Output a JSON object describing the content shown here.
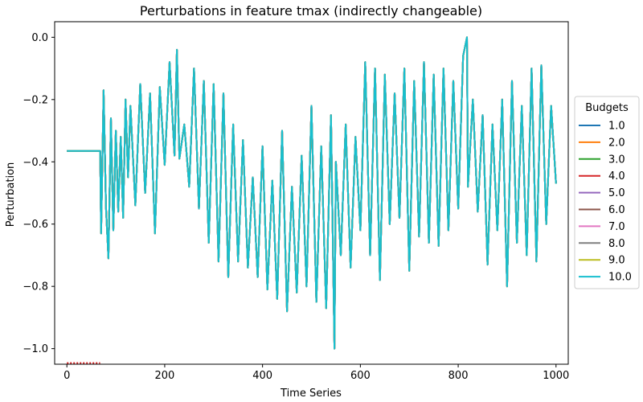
{
  "chart_data": {
    "type": "line",
    "title": "Perturbations in feature tmax (indirectly changeable)",
    "xlabel": "Time Series",
    "ylabel": "Perturbation",
    "xlim": [
      -25,
      1025
    ],
    "ylim": [
      -1.05,
      0.05
    ],
    "xticks": [
      0,
      200,
      400,
      600,
      800,
      1000
    ],
    "xtick_labels": [
      "0",
      "200",
      "400",
      "600",
      "800",
      "1000"
    ],
    "yticks": [
      0.0,
      -0.2,
      -0.4,
      -0.6,
      -0.8,
      -1.0
    ],
    "ytick_labels": [
      "0.0",
      "−0.2",
      "−0.4",
      "−0.6",
      "−0.8",
      "−1.0"
    ],
    "grid": false,
    "legend": {
      "title": "Budgets",
      "placement": "center-right-outside",
      "entries": [
        "1.0",
        "2.0",
        "3.0",
        "4.0",
        "5.0",
        "6.0",
        "7.0",
        "8.0",
        "9.0",
        "10.0"
      ]
    },
    "series_colors": [
      "#1f77b4",
      "#ff7f0e",
      "#2ca02c",
      "#d62728",
      "#9467bd",
      "#8c564b",
      "#e377c2",
      "#7f7f7f",
      "#bcbd22",
      "#17becf"
    ],
    "note_marks": {
      "x_start": 0,
      "x_end": 68,
      "y": -1.05,
      "color": "#d62728"
    },
    "series_values_description": "All 10 budget series overlap: flat at -0.365 from x=0 to x=68, then oscillate",
    "flat_value": -0.365,
    "flat_end_x": 68,
    "oscillation": {
      "x": [
        68,
        70,
        75,
        80,
        85,
        90,
        95,
        100,
        105,
        110,
        115,
        120,
        125,
        130,
        140,
        150,
        160,
        170,
        180,
        190,
        200,
        210,
        220,
        225,
        230,
        240,
        250,
        260,
        270,
        280,
        290,
        300,
        310,
        320,
        330,
        340,
        350,
        360,
        370,
        380,
        390,
        400,
        410,
        420,
        430,
        440,
        450,
        460,
        470,
        480,
        490,
        500,
        510,
        520,
        530,
        540,
        547,
        550,
        560,
        570,
        580,
        590,
        600,
        610,
        620,
        630,
        640,
        650,
        660,
        670,
        680,
        690,
        700,
        710,
        720,
        730,
        740,
        750,
        760,
        770,
        780,
        790,
        800,
        810,
        818,
        820,
        830,
        840,
        850,
        860,
        870,
        880,
        890,
        900,
        910,
        920,
        930,
        940,
        950,
        960,
        970,
        980,
        990,
        1000
      ],
      "y": [
        -0.365,
        -0.63,
        -0.17,
        -0.55,
        -0.71,
        -0.26,
        -0.62,
        -0.3,
        -0.56,
        -0.32,
        -0.58,
        -0.2,
        -0.45,
        -0.22,
        -0.54,
        -0.15,
        -0.5,
        -0.18,
        -0.63,
        -0.16,
        -0.41,
        -0.08,
        -0.38,
        -0.04,
        -0.39,
        -0.28,
        -0.48,
        -0.1,
        -0.55,
        -0.14,
        -0.66,
        -0.15,
        -0.72,
        -0.18,
        -0.77,
        -0.28,
        -0.72,
        -0.33,
        -0.74,
        -0.45,
        -0.77,
        -0.35,
        -0.81,
        -0.46,
        -0.84,
        -0.3,
        -0.88,
        -0.48,
        -0.82,
        -0.38,
        -0.8,
        -0.22,
        -0.85,
        -0.35,
        -0.87,
        -0.25,
        -1.0,
        -0.4,
        -0.7,
        -0.28,
        -0.74,
        -0.32,
        -0.62,
        -0.08,
        -0.7,
        -0.1,
        -0.78,
        -0.12,
        -0.6,
        -0.18,
        -0.58,
        -0.1,
        -0.75,
        -0.14,
        -0.64,
        -0.08,
        -0.66,
        -0.12,
        -0.67,
        -0.1,
        -0.62,
        -0.14,
        -0.55,
        -0.06,
        -0.0,
        -0.48,
        -0.2,
        -0.56,
        -0.25,
        -0.73,
        -0.28,
        -0.62,
        -0.2,
        -0.8,
        -0.14,
        -0.66,
        -0.22,
        -0.7,
        -0.1,
        -0.72,
        -0.09,
        -0.6,
        -0.22,
        -0.47
      ]
    }
  }
}
